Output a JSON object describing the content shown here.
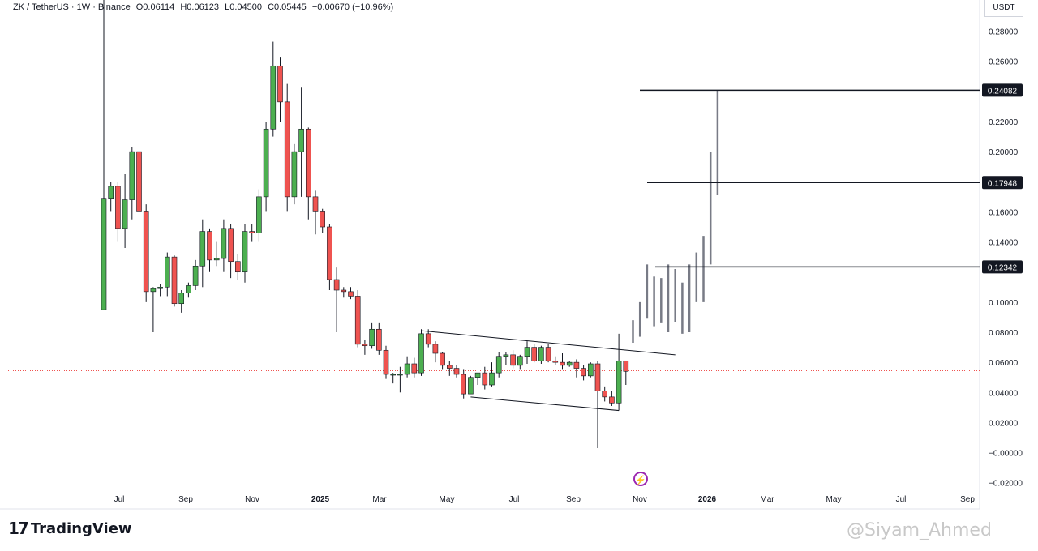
{
  "header": {
    "symbol": "ZK / TetherUS · 1W · Binance",
    "open": "O0.06114",
    "high": "H0.06123",
    "low": "L0.04500",
    "close": "C0.05445",
    "change": "−0.00670 (−10.96%)",
    "unit": "USDT"
  },
  "footer": {
    "brand": "TradingView",
    "watermark": "@Siyam_Ahmed"
  },
  "colors": {
    "up": "#4caf50",
    "down": "#ef5350",
    "line": "#131722",
    "projection": "#787b86",
    "current_price_line": "#ef5350",
    "flash": "#9c27b0"
  },
  "icons": {
    "logo": "tradingview-logo-icon",
    "flash": "lightning-icon"
  },
  "chart_data": {
    "type": "candlestick",
    "x_axis_ticks": [
      "Jul",
      "Sep",
      "Nov",
      "2025",
      "Mar",
      "May",
      "Jul",
      "Sep",
      "Nov",
      "2026",
      "Mar",
      "May",
      "Jul",
      "Sep"
    ],
    "y_ticks": [
      "0.28000",
      "0.26000",
      "0.22000",
      "0.20000",
      "0.16000",
      "0.14000",
      "0.10000",
      "0.08000",
      "0.06000",
      "0.04000",
      "0.02000",
      "−0.00000",
      "−0.02000"
    ],
    "ylim": [
      -0.025,
      0.29
    ],
    "current_price": 0.05445,
    "candles": [
      {
        "o": 0.095,
        "h": 0.32,
        "l": 0.095,
        "c": 0.169
      },
      {
        "o": 0.169,
        "h": 0.18,
        "l": 0.16,
        "c": 0.177
      },
      {
        "o": 0.177,
        "h": 0.18,
        "l": 0.14,
        "c": 0.149
      },
      {
        "o": 0.149,
        "h": 0.185,
        "l": 0.136,
        "c": 0.168
      },
      {
        "o": 0.168,
        "h": 0.203,
        "l": 0.155,
        "c": 0.2
      },
      {
        "o": 0.2,
        "h": 0.203,
        "l": 0.15,
        "c": 0.16
      },
      {
        "o": 0.16,
        "h": 0.165,
        "l": 0.1,
        "c": 0.107
      },
      {
        "o": 0.107,
        "h": 0.11,
        "l": 0.08,
        "c": 0.109
      },
      {
        "o": 0.109,
        "h": 0.112,
        "l": 0.104,
        "c": 0.11
      },
      {
        "o": 0.11,
        "h": 0.133,
        "l": 0.104,
        "c": 0.13
      },
      {
        "o": 0.13,
        "h": 0.131,
        "l": 0.097,
        "c": 0.099
      },
      {
        "o": 0.099,
        "h": 0.108,
        "l": 0.093,
        "c": 0.106
      },
      {
        "o": 0.106,
        "h": 0.113,
        "l": 0.103,
        "c": 0.111
      },
      {
        "o": 0.111,
        "h": 0.128,
        "l": 0.108,
        "c": 0.124
      },
      {
        "o": 0.124,
        "h": 0.155,
        "l": 0.11,
        "c": 0.147
      },
      {
        "o": 0.147,
        "h": 0.149,
        "l": 0.12,
        "c": 0.128
      },
      {
        "o": 0.128,
        "h": 0.14,
        "l": 0.124,
        "c": 0.129
      },
      {
        "o": 0.129,
        "h": 0.155,
        "l": 0.12,
        "c": 0.149
      },
      {
        "o": 0.149,
        "h": 0.152,
        "l": 0.116,
        "c": 0.127
      },
      {
        "o": 0.127,
        "h": 0.132,
        "l": 0.115,
        "c": 0.12
      },
      {
        "o": 0.12,
        "h": 0.152,
        "l": 0.113,
        "c": 0.147
      },
      {
        "o": 0.147,
        "h": 0.152,
        "l": 0.14,
        "c": 0.146
      },
      {
        "o": 0.146,
        "h": 0.175,
        "l": 0.14,
        "c": 0.17
      },
      {
        "o": 0.17,
        "h": 0.22,
        "l": 0.16,
        "c": 0.215
      },
      {
        "o": 0.215,
        "h": 0.273,
        "l": 0.21,
        "c": 0.257
      },
      {
        "o": 0.257,
        "h": 0.263,
        "l": 0.22,
        "c": 0.233
      },
      {
        "o": 0.233,
        "h": 0.245,
        "l": 0.16,
        "c": 0.17
      },
      {
        "o": 0.17,
        "h": 0.205,
        "l": 0.165,
        "c": 0.2
      },
      {
        "o": 0.2,
        "h": 0.243,
        "l": 0.17,
        "c": 0.215
      },
      {
        "o": 0.215,
        "h": 0.216,
        "l": 0.155,
        "c": 0.17
      },
      {
        "o": 0.17,
        "h": 0.174,
        "l": 0.145,
        "c": 0.16
      },
      {
        "o": 0.16,
        "h": 0.162,
        "l": 0.146,
        "c": 0.15
      },
      {
        "o": 0.15,
        "h": 0.152,
        "l": 0.108,
        "c": 0.115
      },
      {
        "o": 0.115,
        "h": 0.123,
        "l": 0.08,
        "c": 0.108
      },
      {
        "o": 0.108,
        "h": 0.11,
        "l": 0.103,
        "c": 0.107
      },
      {
        "o": 0.107,
        "h": 0.11,
        "l": 0.102,
        "c": 0.104
      },
      {
        "o": 0.104,
        "h": 0.108,
        "l": 0.07,
        "c": 0.072
      },
      {
        "o": 0.072,
        "h": 0.075,
        "l": 0.065,
        "c": 0.071
      },
      {
        "o": 0.071,
        "h": 0.086,
        "l": 0.069,
        "c": 0.082
      },
      {
        "o": 0.082,
        "h": 0.086,
        "l": 0.065,
        "c": 0.068
      },
      {
        "o": 0.068,
        "h": 0.071,
        "l": 0.049,
        "c": 0.052
      },
      {
        "o": 0.052,
        "h": 0.053,
        "l": 0.046,
        "c": 0.052
      },
      {
        "o": 0.052,
        "h": 0.057,
        "l": 0.04,
        "c": 0.052
      },
      {
        "o": 0.052,
        "h": 0.064,
        "l": 0.05,
        "c": 0.059
      },
      {
        "o": 0.059,
        "h": 0.063,
        "l": 0.05,
        "c": 0.053
      },
      {
        "o": 0.053,
        "h": 0.082,
        "l": 0.051,
        "c": 0.079
      },
      {
        "o": 0.079,
        "h": 0.082,
        "l": 0.07,
        "c": 0.072
      },
      {
        "o": 0.072,
        "h": 0.074,
        "l": 0.06,
        "c": 0.066
      },
      {
        "o": 0.066,
        "h": 0.067,
        "l": 0.055,
        "c": 0.058
      },
      {
        "o": 0.058,
        "h": 0.061,
        "l": 0.051,
        "c": 0.056
      },
      {
        "o": 0.056,
        "h": 0.058,
        "l": 0.05,
        "c": 0.052
      },
      {
        "o": 0.052,
        "h": 0.055,
        "l": 0.036,
        "c": 0.039
      },
      {
        "o": 0.039,
        "h": 0.051,
        "l": 0.039,
        "c": 0.05
      },
      {
        "o": 0.05,
        "h": 0.053,
        "l": 0.045,
        "c": 0.053
      },
      {
        "o": 0.053,
        "h": 0.057,
        "l": 0.042,
        "c": 0.045
      },
      {
        "o": 0.045,
        "h": 0.06,
        "l": 0.044,
        "c": 0.053
      },
      {
        "o": 0.053,
        "h": 0.067,
        "l": 0.05,
        "c": 0.064
      },
      {
        "o": 0.064,
        "h": 0.067,
        "l": 0.058,
        "c": 0.065
      },
      {
        "o": 0.065,
        "h": 0.068,
        "l": 0.056,
        "c": 0.058
      },
      {
        "o": 0.058,
        "h": 0.065,
        "l": 0.055,
        "c": 0.064
      },
      {
        "o": 0.064,
        "h": 0.074,
        "l": 0.059,
        "c": 0.07
      },
      {
        "o": 0.07,
        "h": 0.072,
        "l": 0.06,
        "c": 0.061
      },
      {
        "o": 0.061,
        "h": 0.071,
        "l": 0.059,
        "c": 0.07
      },
      {
        "o": 0.07,
        "h": 0.072,
        "l": 0.06,
        "c": 0.061
      },
      {
        "o": 0.061,
        "h": 0.064,
        "l": 0.058,
        "c": 0.06
      },
      {
        "o": 0.06,
        "h": 0.066,
        "l": 0.055,
        "c": 0.058
      },
      {
        "o": 0.058,
        "h": 0.061,
        "l": 0.057,
        "c": 0.06
      },
      {
        "o": 0.06,
        "h": 0.062,
        "l": 0.05,
        "c": 0.056
      },
      {
        "o": 0.056,
        "h": 0.058,
        "l": 0.048,
        "c": 0.051
      },
      {
        "o": 0.051,
        "h": 0.06,
        "l": 0.05,
        "c": 0.059
      },
      {
        "o": 0.059,
        "h": 0.061,
        "l": 0.003,
        "c": 0.041
      },
      {
        "o": 0.041,
        "h": 0.044,
        "l": 0.034,
        "c": 0.037
      },
      {
        "o": 0.037,
        "h": 0.041,
        "l": 0.031,
        "c": 0.033
      },
      {
        "o": 0.033,
        "h": 0.079,
        "l": 0.028,
        "c": 0.061
      },
      {
        "o": 0.061,
        "h": 0.061,
        "l": 0.045,
        "c": 0.054
      }
    ],
    "projection_bars": [
      {
        "l": 0.073,
        "h": 0.088
      },
      {
        "l": 0.077,
        "h": 0.1
      },
      {
        "l": 0.089,
        "h": 0.125
      },
      {
        "l": 0.084,
        "h": 0.117
      },
      {
        "l": 0.086,
        "h": 0.116
      },
      {
        "l": 0.08,
        "h": 0.125
      },
      {
        "l": 0.087,
        "h": 0.122
      },
      {
        "l": 0.079,
        "h": 0.113
      },
      {
        "l": 0.08,
        "h": 0.125
      },
      {
        "l": 0.1,
        "h": 0.133
      },
      {
        "l": 0.1,
        "h": 0.144
      },
      {
        "l": 0.125,
        "h": 0.2
      },
      {
        "l": 0.171,
        "h": 0.241
      }
    ],
    "levels": [
      {
        "value": 0.24082,
        "label": "0.24082"
      },
      {
        "value": 0.17948,
        "label": "0.17948"
      },
      {
        "value": 0.12342,
        "label": "0.12342"
      }
    ],
    "channel": {
      "upper": {
        "from_candle": 45,
        "from_price": 0.081,
        "to_candle": 81,
        "to_price": 0.065
      },
      "lower": {
        "from_candle": 52,
        "from_price": 0.037,
        "to_candle": 73,
        "to_price": 0.028
      }
    }
  }
}
